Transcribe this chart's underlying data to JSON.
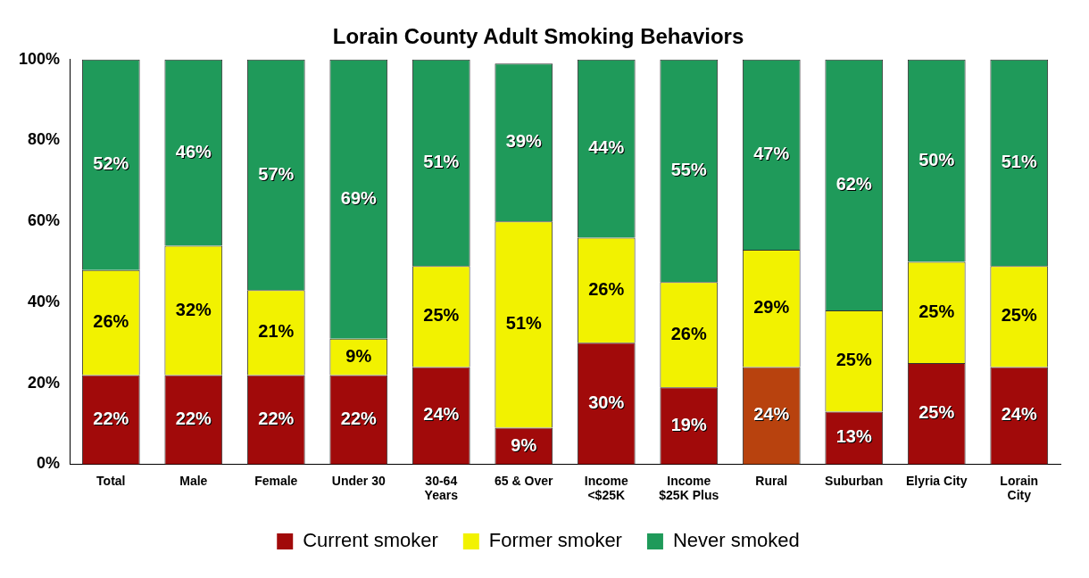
{
  "chart_data": {
    "type": "bar",
    "title": "Lorain County Adult Smoking Behaviors",
    "stacked": true,
    "legend": "bottom",
    "grid": false,
    "categories": [
      "Total",
      "Male",
      "Female",
      "Under 30",
      "30-64\nYears",
      "65 & Over",
      "Income\n<$25K",
      "Income\n$25K Plus",
      "Rural",
      "Suburban",
      "Elyria City",
      "Lorain\nCity"
    ],
    "ylim": [
      0,
      100
    ],
    "yticks": [
      {
        "value": 0,
        "label": "0%"
      },
      {
        "value": 20,
        "label": "20%"
      },
      {
        "value": 40,
        "label": "40%"
      },
      {
        "value": 60,
        "label": "60%"
      },
      {
        "value": 80,
        "label": "80%"
      },
      {
        "value": 100,
        "label": "100%"
      }
    ],
    "series": [
      {
        "name": "Current smoker",
        "color": "#a10a0a",
        "colors": [
          "#a10a0a",
          "#a10a0a",
          "#a10a0a",
          "#a10a0a",
          "#a10a0a",
          "#a10a0a",
          "#a10a0a",
          "#a10a0a",
          "#b8420e",
          "#a10a0a",
          "#a10a0a",
          "#a10a0a"
        ],
        "values": [
          22,
          22,
          22,
          22,
          24,
          9,
          30,
          19,
          24,
          13,
          25,
          24
        ],
        "value_labels": [
          "22%",
          "22%",
          "22%",
          "22%",
          "24%",
          "9%",
          "30%",
          "19%",
          "24%",
          "13%",
          "25%",
          "24%"
        ]
      },
      {
        "name": "Former smoker",
        "color": "#f2f200",
        "values": [
          26,
          32,
          21,
          9,
          25,
          51,
          26,
          26,
          29,
          25,
          25,
          25
        ],
        "value_labels": [
          "26%",
          "32%",
          "21%",
          "9%",
          "25%",
          "51%",
          "26%",
          "26%",
          "29%",
          "25%",
          "25%",
          "25%"
        ]
      },
      {
        "name": "Never smoked",
        "color": "#1f9a5a",
        "values": [
          52,
          46,
          57,
          69,
          51,
          39,
          44,
          55,
          47,
          62,
          50,
          51
        ],
        "value_labels": [
          "52%",
          "46%",
          "57%",
          "69%",
          "51%",
          "39%",
          "44%",
          "55%",
          "47%",
          "62%",
          "50%",
          "51%"
        ]
      }
    ]
  }
}
